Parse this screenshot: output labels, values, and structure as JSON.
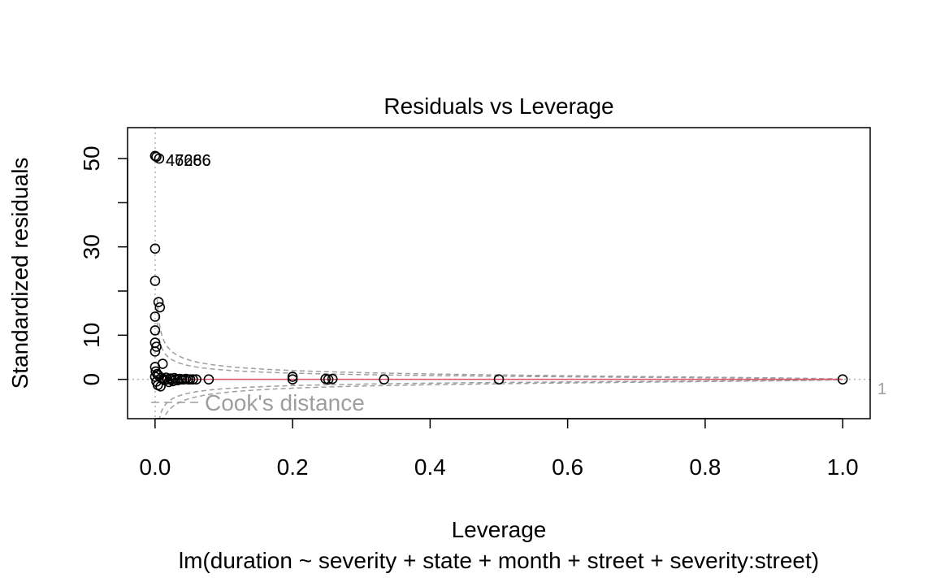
{
  "chart_data": {
    "type": "scatter",
    "title": "Residuals vs Leverage",
    "xlabel": "Leverage",
    "ylabel": "Standardized residuals",
    "subtitle": "lm(duration ~ severity + state + month + street + severity:street)",
    "xlim": [
      -0.04,
      1.04
    ],
    "ylim": [
      -8.9,
      57.0
    ],
    "x_ticks": [
      0.0,
      0.2,
      0.4,
      0.6,
      0.8,
      1.0
    ],
    "x_tick_labels": [
      "0.0",
      "0.2",
      "0.4",
      "0.6",
      "0.8",
      "1.0"
    ],
    "y_ticks": [
      0,
      10,
      20,
      30,
      40,
      50
    ],
    "y_tick_labels": [
      "0",
      "10",
      "",
      "30",
      "",
      "50"
    ],
    "grid": false,
    "reference_lines": {
      "h": 0,
      "v": 0
    },
    "cooks_distance": {
      "legend_label": "Cook's distance",
      "levels": [
        0.5,
        1
      ],
      "contour_label": "1",
      "n_params": 1
    },
    "smooth_line_color": "#DF536B",
    "point_labels": [
      "47266",
      "46686"
    ],
    "points": [
      {
        "x": 0.0,
        "y": 50.6
      },
      {
        "x": 0.002,
        "y": 50.4
      },
      {
        "x": 0.006,
        "y": 50.0
      },
      {
        "x": 0.0,
        "y": 29.6
      },
      {
        "x": 0.0,
        "y": 22.3
      },
      {
        "x": 0.005,
        "y": 17.5
      },
      {
        "x": 0.007,
        "y": 16.3
      },
      {
        "x": 0.0,
        "y": 14.2
      },
      {
        "x": 0.0,
        "y": 11.1
      },
      {
        "x": 0.0,
        "y": 8.3
      },
      {
        "x": 0.002,
        "y": 7.4
      },
      {
        "x": 0.0,
        "y": 6.3
      },
      {
        "x": 0.011,
        "y": 3.5
      },
      {
        "x": 0.0,
        "y": 2.8
      },
      {
        "x": 0.001,
        "y": 1.8
      },
      {
        "x": 0.003,
        "y": 1.2
      },
      {
        "x": 0.0,
        "y": 0.6
      },
      {
        "x": 0.002,
        "y": -0.5
      },
      {
        "x": 0.004,
        "y": -1.3
      },
      {
        "x": 0.008,
        "y": -1.6
      },
      {
        "x": 0.005,
        "y": 0.9
      },
      {
        "x": 0.009,
        "y": 0.3
      },
      {
        "x": 0.012,
        "y": 0.1
      },
      {
        "x": 0.014,
        "y": -0.2
      },
      {
        "x": 0.016,
        "y": 0.4
      },
      {
        "x": 0.018,
        "y": 0.0
      },
      {
        "x": 0.02,
        "y": -0.6
      },
      {
        "x": 0.022,
        "y": 0.2
      },
      {
        "x": 0.024,
        "y": 0.0
      },
      {
        "x": 0.026,
        "y": -0.4
      },
      {
        "x": 0.028,
        "y": 0.3
      },
      {
        "x": 0.03,
        "y": 0.0
      },
      {
        "x": 0.033,
        "y": -0.2
      },
      {
        "x": 0.036,
        "y": 0.1
      },
      {
        "x": 0.039,
        "y": 0.0
      },
      {
        "x": 0.042,
        "y": 0.0
      },
      {
        "x": 0.045,
        "y": 0.1
      },
      {
        "x": 0.048,
        "y": 0.0
      },
      {
        "x": 0.051,
        "y": 0.0
      },
      {
        "x": 0.055,
        "y": 0.0
      },
      {
        "x": 0.06,
        "y": 0.0
      },
      {
        "x": 0.078,
        "y": 0.0
      },
      {
        "x": 0.2,
        "y": 0.6
      },
      {
        "x": 0.2,
        "y": 0.0
      },
      {
        "x": 0.248,
        "y": 0.1
      },
      {
        "x": 0.252,
        "y": 0.0
      },
      {
        "x": 0.258,
        "y": 0.1
      },
      {
        "x": 0.333,
        "y": 0.0
      },
      {
        "x": 0.5,
        "y": 0.0
      },
      {
        "x": 1.0,
        "y": 0.0
      }
    ]
  }
}
